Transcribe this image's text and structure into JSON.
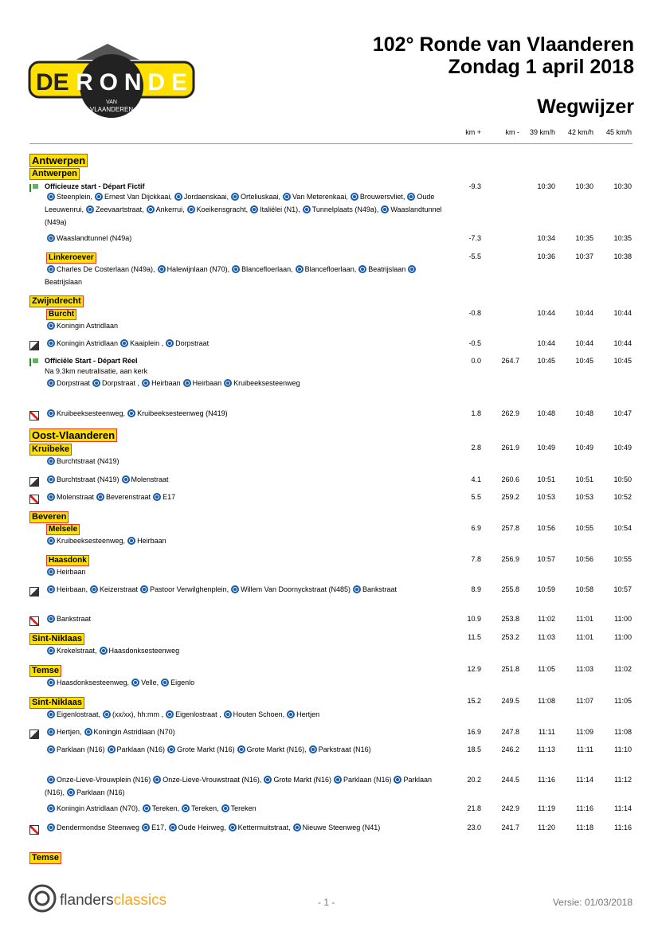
{
  "header": {
    "title": "102° Ronde van Vlaanderen",
    "date": "Zondag 1 april 2018",
    "subtitle": "Wegwijzer"
  },
  "logo": {
    "de1": "DE",
    "ronde": "RONDE",
    "van": "VAN",
    "vlaanderen": "VLAANDEREN"
  },
  "columns": [
    "km +",
    "km -",
    "39 km/h",
    "42 km/h",
    "45 km/h"
  ],
  "items": [
    {
      "kind": "region",
      "name": "Antwerpen"
    },
    {
      "kind": "town",
      "name": "Antwerpen"
    },
    {
      "kind": "entry",
      "label": "Officieuze start - Départ Fictif",
      "route": [
        "Steenplein,",
        "Ernest Van Dijckkaai,",
        "Jordaenskaai,",
        "Orteliuskaai,",
        "Van Meterenkaai,",
        "Brouwersvliet,",
        "Oude Leeuwenrui,",
        "Zeevaartstraat,",
        "Ankerrui,",
        "Koeikensgracht,",
        "Italiëlei (N1),",
        "Tunnelplaats (N49a),",
        "Waaslandtunnel (N49a)"
      ],
      "km_plus": -9.3,
      "times": [
        "10:30",
        "10:30",
        "10:30"
      ]
    },
    {
      "kind": "entry",
      "route": [
        "Waaslandtunnel (N49a)"
      ],
      "km_plus": -7.3,
      "times": [
        "10:34",
        "10:35",
        "10:35"
      ]
    },
    {
      "kind": "entry",
      "place": "Linkeroever",
      "route": [
        "Charles De Costerlaan (N49a),",
        "Halewijnlaan (N70),",
        "Blancefloerlaan,",
        "Blancefloerlaan,",
        "Beatrijslaan",
        "Beatrijslaan"
      ],
      "km_plus": -5.5,
      "times": [
        "10:36",
        "10:37",
        "10:38"
      ]
    },
    {
      "kind": "town",
      "name": "Zwijndrecht"
    },
    {
      "kind": "entry",
      "place": "Burcht",
      "route": [
        "Koningin Astridlaan"
      ],
      "km_plus": -0.8,
      "times": [
        "10:44",
        "10:44",
        "10:44"
      ]
    },
    {
      "kind": "entry",
      "route": [
        "Koningin Astridlaan",
        "Kaaiplein ,",
        "Dorpstraat"
      ],
      "km_plus": -0.5,
      "times": [
        "10:44",
        "10:44",
        "10:44"
      ]
    },
    {
      "kind": "entry",
      "label": "Officiële Start - Départ Réel",
      "note": "Na 9.3km neutralisatie, aan kerk",
      "route": [
        "Dorpstraat",
        "Dorpstraat ,",
        "Heirbaan",
        "Heirbaan",
        "Kruibeeksesteenweg"
      ],
      "km_plus": {
        "value": 0,
        "label": "0.0"
      },
      "km_min": 264.7,
      "times": [
        "10:45",
        "10:45",
        "10:45"
      ]
    },
    {
      "kind": "entry",
      "route": [
        "Kruibeeksesteenweg,",
        "Kruibeeksesteenweg (N419)"
      ],
      "km_plus": 1.8,
      "km_min": 262.9,
      "times": [
        "10:48",
        "10:48",
        "10:47"
      ]
    },
    {
      "kind": "region",
      "name": "Oost-Vlaanderen"
    },
    {
      "kind": "entry",
      "town": "Kruibeke",
      "route": [
        "Burchtstraat (N419)"
      ],
      "km_plus": 2.8,
      "km_min": 261.9,
      "times": [
        "10:49",
        "10:49",
        "10:49"
      ]
    },
    {
      "kind": "entry",
      "route": [
        "Burchtstraat (N419)",
        "Molenstraat"
      ],
      "km_plus": 4.1,
      "km_min": 260.6,
      "times": [
        "10:51",
        "10:51",
        "10:50"
      ]
    },
    {
      "kind": "entry",
      "route": [
        "Molenstraat",
        "Beverenstraat",
        "E17"
      ],
      "km_plus": 5.5,
      "km_min": 259.2,
      "times": [
        "10:53",
        "10:53",
        "10:52"
      ]
    },
    {
      "kind": "town",
      "name": "Beveren"
    },
    {
      "kind": "entry",
      "place": "Melsele",
      "route": [
        "Kruibeeksesteenweg,",
        "Heirbaan"
      ],
      "km_plus": 6.9,
      "km_min": 257.8,
      "times": [
        "10:56",
        "10:55",
        "10:54"
      ]
    },
    {
      "kind": "entry",
      "place": "Haasdonk",
      "route": [
        "Heirbaan"
      ],
      "km_plus": 7.8,
      "km_min": 256.9,
      "times": [
        "10:57",
        "10:56",
        "10:55"
      ]
    },
    {
      "kind": "entry",
      "route": [
        "Heirbaan,",
        "Keizerstraat",
        "Pastoor Verwilghenplein,",
        "Willem Van Doornyckstraat (N485)",
        "Bankstraat"
      ],
      "km_plus": 8.9,
      "km_min": 255.8,
      "times": [
        "10:59",
        "10:58",
        "10:57"
      ]
    },
    {
      "kind": "entry",
      "route": [
        "Bankstraat"
      ],
      "km_plus": 10.9,
      "km_min": 253.8,
      "times": [
        "11:02",
        "11:01",
        "11:00"
      ]
    },
    {
      "kind": "entry",
      "town": "Sint-Niklaas",
      "route": [
        "Krekelstraat,",
        "Haasdonksesteenweg"
      ],
      "km_plus": 11.5,
      "km_min": 253.2,
      "times": [
        "11:03",
        "11:01",
        "11:00"
      ]
    },
    {
      "kind": "entry",
      "town": "Temse",
      "route": [
        "Haasdonksesteenweg,",
        "Velle,",
        "Eigenlo"
      ],
      "km_plus": 12.9,
      "km_min": 251.8,
      "times": [
        "11:05",
        "11:03",
        "11:02"
      ]
    },
    {
      "kind": "entry",
      "town": "Sint-Niklaas",
      "route": [
        "Eigenlostraat,",
        "(xx/xx), hh:mm ,",
        "Eigenlostraat ,",
        "Houten Schoen,",
        "Hertjen"
      ],
      "km_plus": 15.2,
      "km_min": 249.5,
      "times": [
        "11:08",
        "11:07",
        "11:05"
      ]
    },
    {
      "kind": "entry",
      "route": [
        "Hertjen,",
        "Koningin Astridlaan (N70)"
      ],
      "km_plus": 16.9,
      "km_min": 247.8,
      "times": [
        "11:11",
        "11:09",
        "11:08"
      ]
    },
    {
      "kind": "entry",
      "route": [
        "Parklaan (N16)",
        "Parklaan (N16)",
        "Grote Markt (N16)",
        "Grote Markt (N16),",
        "Parkstraat (N16)"
      ],
      "km_plus": 18.5,
      "km_min": 246.2,
      "times": [
        "11:13",
        "11:11",
        "11:10"
      ]
    },
    {
      "kind": "entry",
      "route": [
        "Onze-Lieve-Vrouwplein (N16)",
        "Onze-Lieve-Vrouwstraat (N16),",
        "Grote Markt (N16)",
        "Parklaan (N16)",
        "Parklaan (N16),",
        "Parklaan (N16)"
      ],
      "km_plus": 20.2,
      "km_min": 244.5,
      "times": [
        "11:16",
        "11:14",
        "11:12"
      ]
    },
    {
      "kind": "entry",
      "route": [
        "Koningin Astridlaan (N70),",
        "Tereken,",
        "Tereken,",
        "Tereken"
      ],
      "km_plus": 21.8,
      "km_min": 242.9,
      "times": [
        "11:19",
        "11:16",
        "11:14"
      ]
    },
    {
      "kind": "entry",
      "route": [
        "Dendermondse Steenweg",
        "E17,",
        "Oude Heirweg,",
        "Kettermuitstraat,",
        "Nieuwe Steenweg (N41)"
      ],
      "km_plus": {
        "value": 23,
        "label": "23.0"
      },
      "km_min": 241.7,
      "times": [
        "11:20",
        "11:18",
        "11:16"
      ]
    },
    {
      "kind": "town",
      "name": "Temse"
    }
  ],
  "footer": {
    "brand1": "flanders",
    "brand2": "classics",
    "page": "- 1 -",
    "version": "Versie: 01/03/2018"
  }
}
